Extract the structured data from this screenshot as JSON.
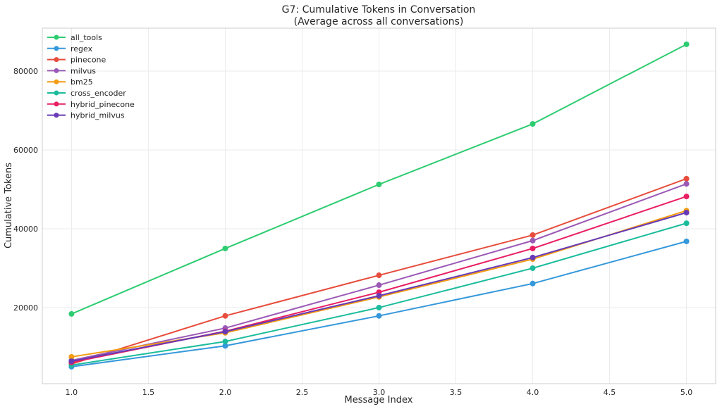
{
  "chart_data": {
    "type": "line",
    "title": "G7: Cumulative Tokens in Conversation",
    "subtitle": "(Average across all conversations)",
    "xlabel": "Message Index",
    "ylabel": "Cumulative Tokens",
    "x": [
      1,
      2,
      3,
      4,
      5
    ],
    "xlim": [
      0.81,
      5.19
    ],
    "ylim": [
      700,
      90900
    ],
    "xticks": [
      "1.0",
      "1.5",
      "2.0",
      "2.5",
      "3.0",
      "3.5",
      "4.0",
      "4.5",
      "5.0"
    ],
    "xtick_values": [
      1,
      1.5,
      2,
      2.5,
      3,
      3.5,
      4,
      4.5,
      5
    ],
    "yticks": [
      "20000",
      "40000",
      "60000",
      "80000"
    ],
    "ytick_values": [
      20000,
      40000,
      60000,
      80000
    ],
    "grid": true,
    "legend_position": "top-left",
    "series": [
      {
        "name": "all_tools",
        "color": "#2ecc71",
        "values": [
          18400,
          35000,
          51250,
          66600,
          86800
        ]
      },
      {
        "name": "regex",
        "color": "#3498db",
        "values": [
          5000,
          10300,
          17900,
          26100,
          36800
        ]
      },
      {
        "name": "pinecone",
        "color": "#e74c3c",
        "values": [
          5700,
          17900,
          28200,
          38400,
          52700
        ]
      },
      {
        "name": "milvus",
        "color": "#9b59b6",
        "values": [
          6600,
          14800,
          25700,
          37000,
          51400
        ]
      },
      {
        "name": "bm25",
        "color": "#f39c12",
        "values": [
          7500,
          13600,
          22700,
          32300,
          44600
        ]
      },
      {
        "name": "cross_encoder",
        "color": "#1abc9c",
        "values": [
          5400,
          11400,
          20000,
          30000,
          41400
        ]
      },
      {
        "name": "hybrid_pinecone",
        "color": "#e91e63",
        "values": [
          6100,
          14000,
          23900,
          35000,
          48200
        ]
      },
      {
        "name": "hybrid_milvus",
        "color": "#673ab7",
        "values": [
          6400,
          13900,
          23000,
          32700,
          44100
        ]
      }
    ]
  }
}
